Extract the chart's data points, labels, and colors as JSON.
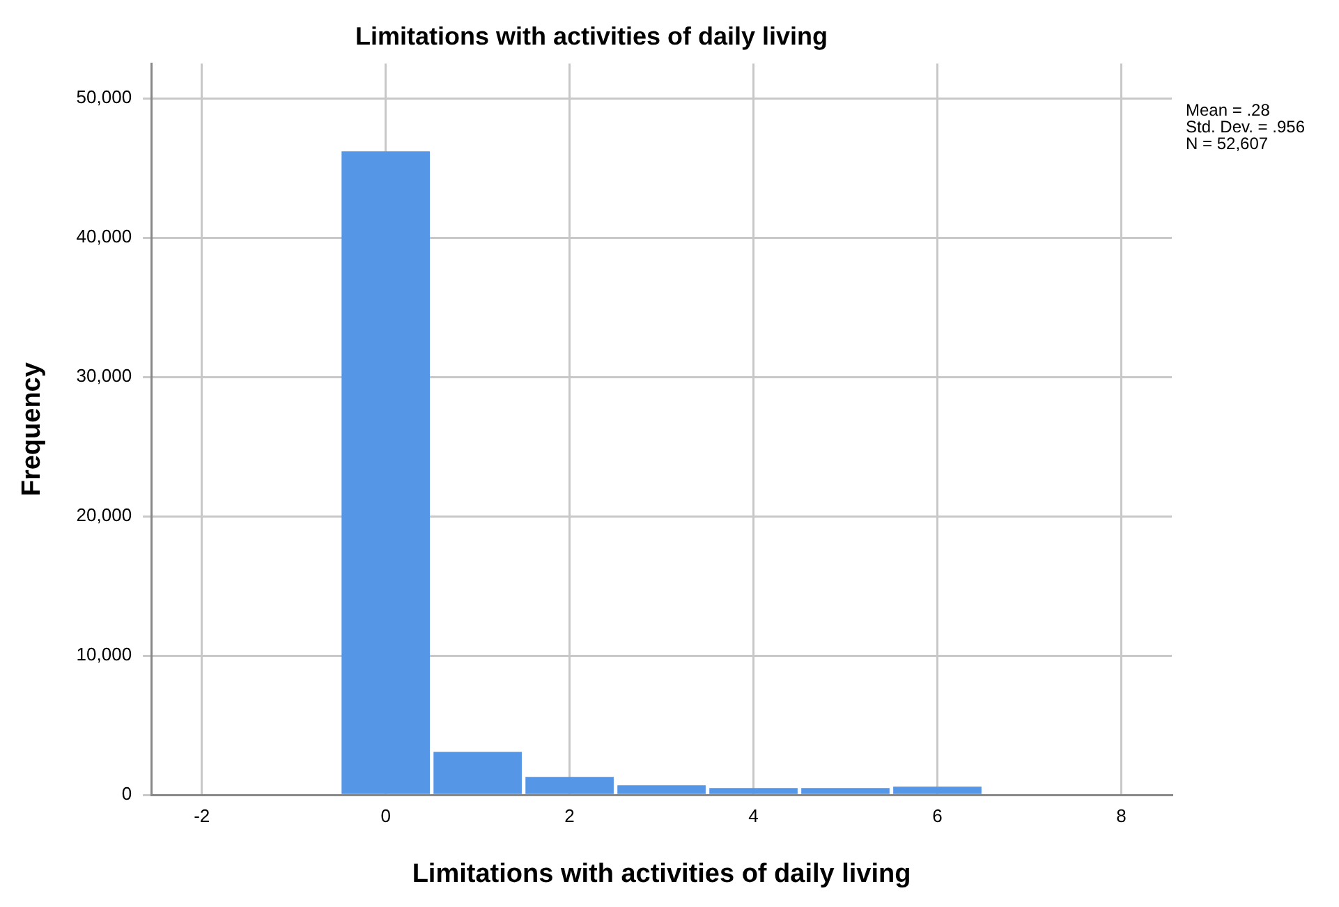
{
  "chart_data": {
    "type": "histogram",
    "title": "Limitations with activities of daily living",
    "xlabel": "Limitations with activities of daily living",
    "ylabel": "Frequency",
    "bins": [
      -0.5,
      0.5,
      1.5,
      2.5,
      3.5,
      4.5,
      5.5,
      6.5
    ],
    "values": [
      46200,
      3100,
      1300,
      700,
      500,
      500,
      600
    ],
    "color": "#5596e6",
    "xlim": [
      -2.55,
      8.55
    ],
    "xticks": [
      {
        "value": -2,
        "label": "-2"
      },
      0,
      2,
      4,
      6,
      8
    ],
    "ylim": [
      0,
      52500
    ],
    "yticks": [
      {
        "value": 0,
        "label": "0"
      },
      {
        "value": 10000,
        "label": "10,000"
      },
      {
        "value": 20000,
        "label": "20,000"
      },
      {
        "value": 30000,
        "label": "30,000"
      },
      {
        "value": 40000,
        "label": "40,000"
      },
      {
        "value": 50000,
        "label": "50,000"
      }
    ],
    "grid": true,
    "legend": false,
    "annotations": [
      "Mean = .28",
      "Std. Dev. = .956",
      "N = 52,607"
    ]
  }
}
